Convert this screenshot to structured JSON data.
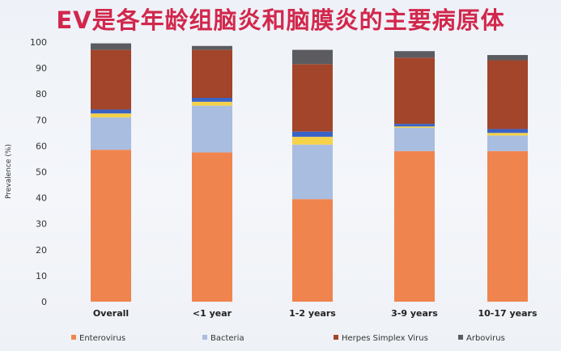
{
  "title": "EV是各年龄组脑炎和脑膜炎的主要病原体",
  "chart_data": {
    "type": "bar",
    "stacked": true,
    "ylabel": "Prevalence (%)",
    "ylim": [
      0,
      100
    ],
    "yticks": [
      0,
      10,
      20,
      30,
      40,
      50,
      60,
      70,
      80,
      90,
      100
    ],
    "categories": [
      "Overall",
      "<1 year",
      "1-2 years",
      "3-9 years",
      "10-17 years"
    ],
    "legend_position": "bottom",
    "series": [
      {
        "name": "Enterovirus",
        "color": "#f0844e",
        "values": [
          58.5,
          57.5,
          39.5,
          58,
          58
        ]
      },
      {
        "name": "Bacteria",
        "color": "#a9bde0",
        "values": [
          12.5,
          18,
          21,
          9,
          6
        ]
      },
      {
        "name": "",
        "color": "#f6d24a",
        "values": [
          1.5,
          1.5,
          3,
          0.5,
          1
        ]
      },
      {
        "name": "",
        "color": "#3a63c8",
        "values": [
          1.5,
          1.5,
          2,
          1,
          1.5
        ]
      },
      {
        "name": "Herpes Simplex Virus",
        "color": "#a2452a",
        "values": [
          23,
          18.5,
          26,
          25.5,
          26.5
        ]
      },
      {
        "name": "Arbovirus",
        "color": "#5c5c60",
        "values": [
          2.5,
          1.5,
          5.5,
          2.5,
          2
        ]
      }
    ]
  }
}
